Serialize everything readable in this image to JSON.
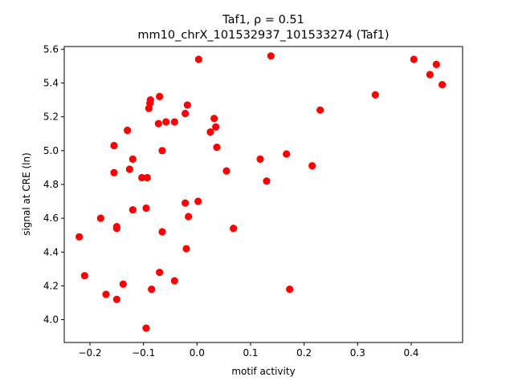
{
  "chart_data": {
    "type": "scatter",
    "title_line1": "Taf1, ρ = 0.51",
    "title_line2": "mm10_chrX_101532937_101533274 (Taf1)",
    "xlabel": "motif activity",
    "ylabel": "signal at CRE (ln)",
    "xlim": [
      -0.248,
      0.496
    ],
    "ylim": [
      3.865,
      5.616
    ],
    "xticks": [
      -0.2,
      -0.1,
      0.0,
      0.1,
      0.2,
      0.3,
      0.4
    ],
    "xtick_labels": [
      "−0.2",
      "−0.1",
      "0.0",
      "0.1",
      "0.2",
      "0.3",
      "0.4"
    ],
    "yticks": [
      4.0,
      4.2,
      4.4,
      4.6,
      4.8,
      5.0,
      5.2,
      5.4,
      5.6
    ],
    "ytick_labels": [
      "4.0",
      "4.2",
      "4.4",
      "4.6",
      "4.8",
      "5.0",
      "5.2",
      "5.4",
      "5.6"
    ],
    "grid": false,
    "marker_color": "#ff0000",
    "points": [
      [
        -0.22,
        4.49
      ],
      [
        -0.21,
        4.26
      ],
      [
        -0.18,
        4.6
      ],
      [
        -0.17,
        4.15
      ],
      [
        -0.155,
        5.03
      ],
      [
        -0.155,
        4.87
      ],
      [
        -0.15,
        4.55
      ],
      [
        -0.15,
        4.54
      ],
      [
        -0.15,
        4.12
      ],
      [
        -0.138,
        4.21
      ],
      [
        -0.13,
        5.12
      ],
      [
        -0.126,
        4.89
      ],
      [
        -0.12,
        4.95
      ],
      [
        -0.12,
        4.65
      ],
      [
        -0.103,
        4.84
      ],
      [
        -0.095,
        4.66
      ],
      [
        -0.095,
        3.95
      ],
      [
        -0.093,
        4.84
      ],
      [
        -0.09,
        5.25
      ],
      [
        -0.088,
        5.28
      ],
      [
        -0.087,
        5.3
      ],
      [
        -0.085,
        4.18
      ],
      [
        -0.072,
        5.16
      ],
      [
        -0.07,
        5.32
      ],
      [
        -0.07,
        4.28
      ],
      [
        -0.065,
        5.0
      ],
      [
        -0.065,
        4.52
      ],
      [
        -0.058,
        5.17
      ],
      [
        -0.042,
        5.17
      ],
      [
        -0.042,
        4.23
      ],
      [
        -0.022,
        5.22
      ],
      [
        -0.022,
        4.69
      ],
      [
        -0.02,
        4.42
      ],
      [
        -0.018,
        5.27
      ],
      [
        -0.016,
        4.61
      ],
      [
        0.002,
        4.7
      ],
      [
        0.003,
        5.54
      ],
      [
        0.025,
        5.11
      ],
      [
        0.032,
        5.19
      ],
      [
        0.035,
        5.14
      ],
      [
        0.037,
        5.02
      ],
      [
        0.055,
        4.88
      ],
      [
        0.068,
        4.54
      ],
      [
        0.118,
        4.95
      ],
      [
        0.13,
        4.82
      ],
      [
        0.138,
        5.56
      ],
      [
        0.167,
        4.98
      ],
      [
        0.173,
        4.18
      ],
      [
        0.215,
        4.91
      ],
      [
        0.23,
        5.24
      ],
      [
        0.333,
        5.33
      ],
      [
        0.405,
        5.54
      ],
      [
        0.435,
        5.45
      ],
      [
        0.447,
        5.51
      ],
      [
        0.458,
        5.39
      ]
    ]
  }
}
